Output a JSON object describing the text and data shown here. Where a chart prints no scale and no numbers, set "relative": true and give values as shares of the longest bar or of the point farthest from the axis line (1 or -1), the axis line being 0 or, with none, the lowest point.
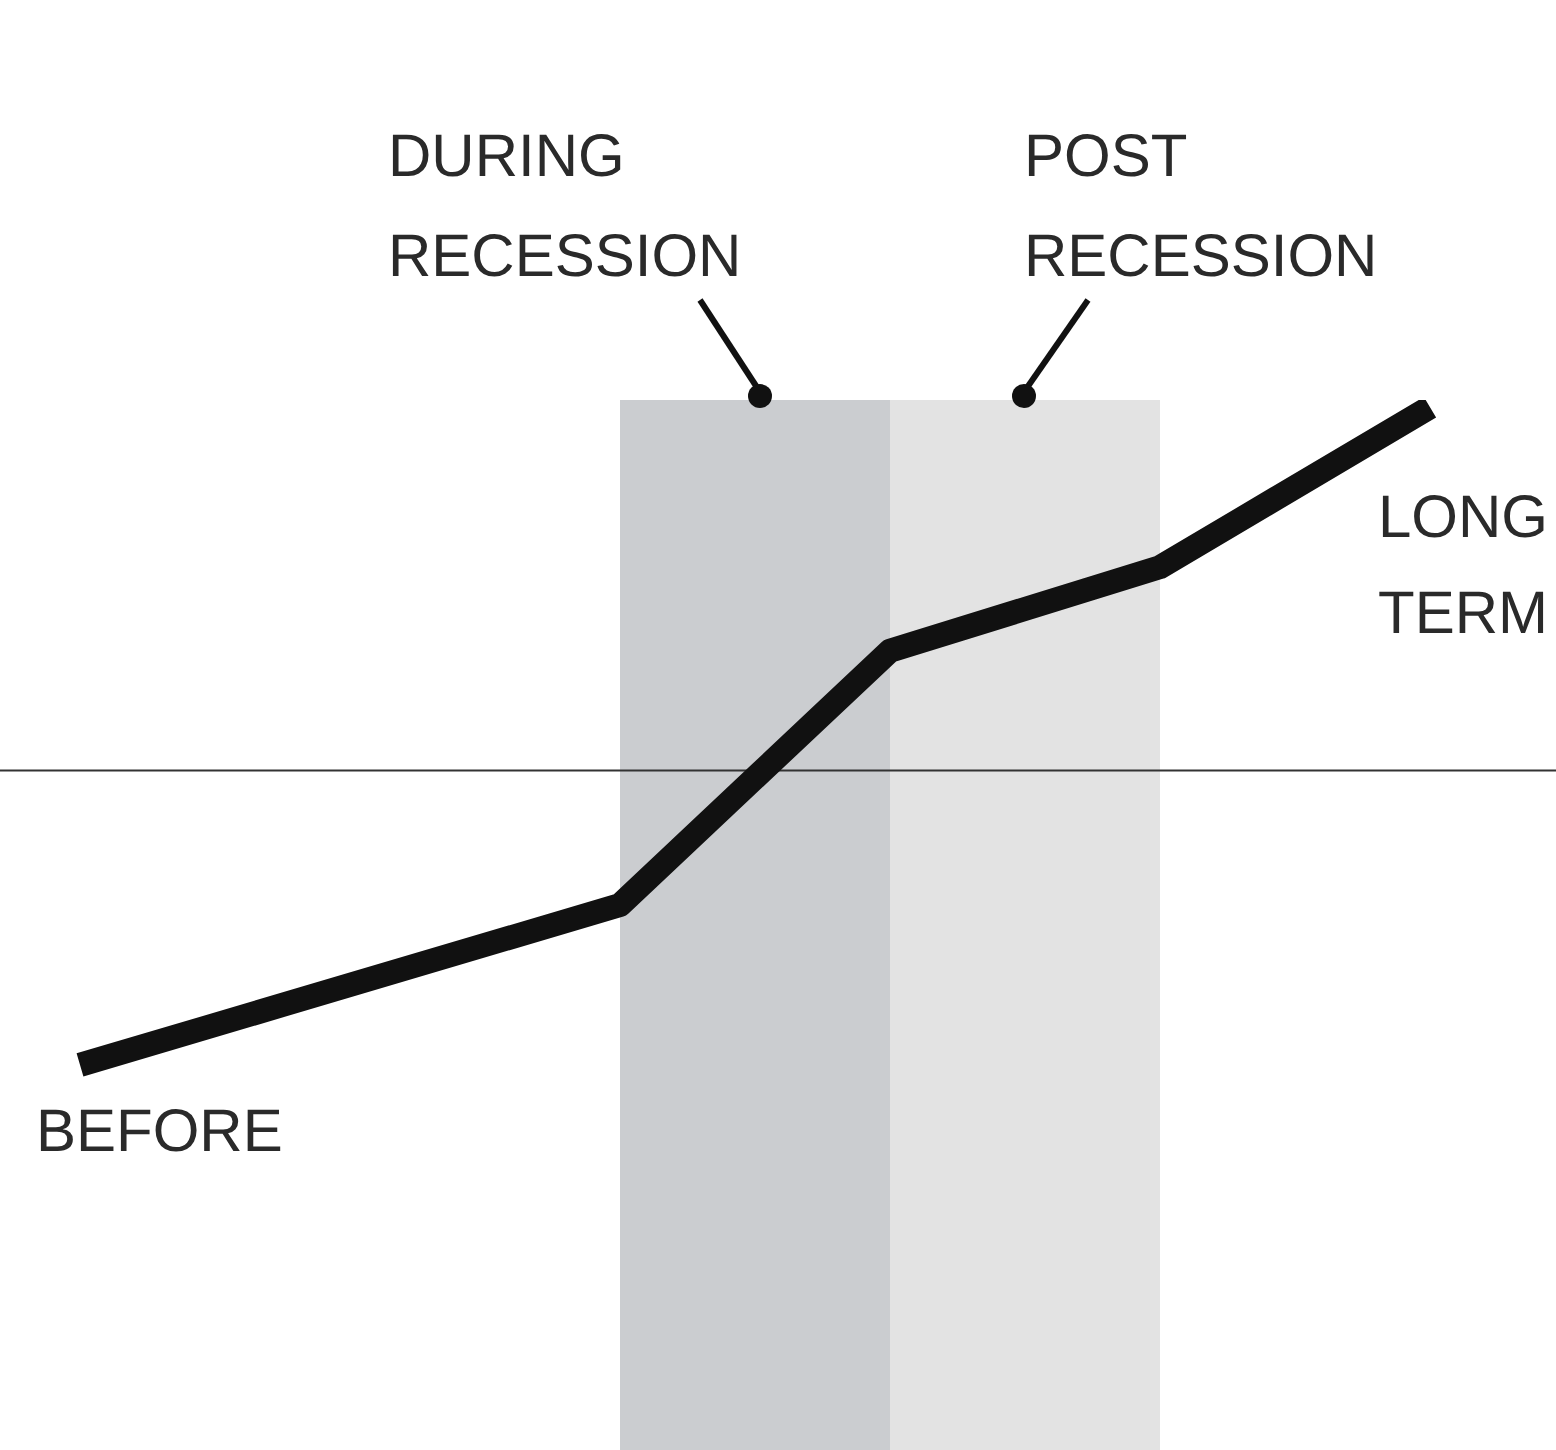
{
  "chart_data": {
    "type": "line",
    "relative": true,
    "categories": [
      null,
      null,
      null,
      null,
      null,
      null
    ],
    "series": [
      {
        "color": "#111111",
        "values": [
          -0.81,
          null,
          -0.37,
          0.33,
          0.56,
          1
        ]
      }
    ],
    "annotations": [
      "DURING\nRECESSION",
      "POST\nRECESSION",
      "BEFORE",
      "LONG\nTERM"
    ],
    "legend": false,
    "marker": "none",
    "line_style": "solid"
  }
}
